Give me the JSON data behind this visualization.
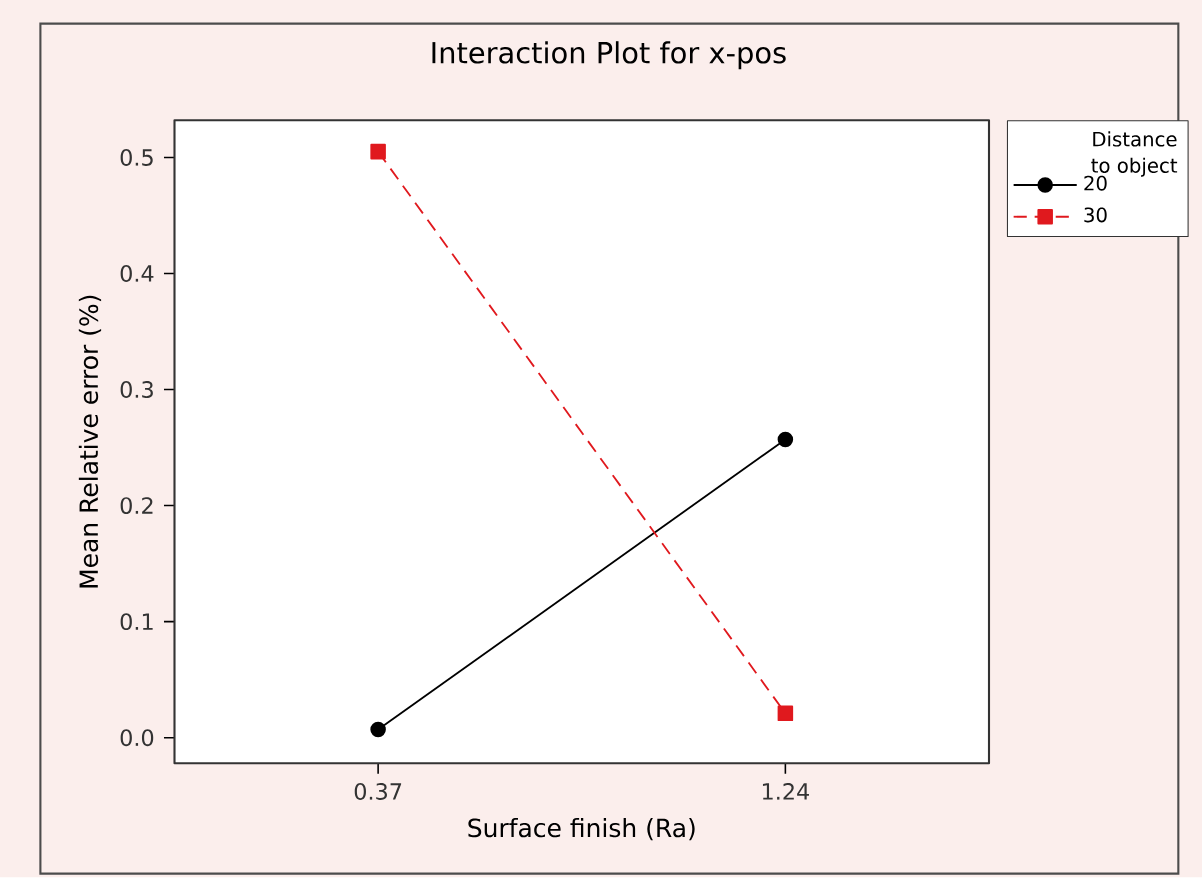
{
  "chart_data": {
    "type": "line",
    "title": "Interaction Plot for x-pos",
    "xlabel": "Surface finish (Ra)",
    "ylabel": "Mean Relative error (%)",
    "legend_title": "Distance to object",
    "legend": "top right",
    "grid": false,
    "categories": [
      "0.37",
      "1.24"
    ],
    "ylim": [
      -0.022,
      0.532
    ],
    "yticks": [
      {
        "value": 0,
        "label": "0.0"
      },
      {
        "value": 0.1,
        "label": "0.1"
      },
      {
        "value": 0.2,
        "label": "0.2"
      },
      {
        "value": 0.3,
        "label": "0.3"
      },
      {
        "value": 0.4,
        "label": "0.4"
      },
      {
        "value": 0.5,
        "label": "0.5"
      }
    ],
    "series": [
      {
        "name": "20",
        "color": "#000000",
        "marker": "circle",
        "line_style": "solid",
        "values": [
          0.007,
          0.257
        ]
      },
      {
        "name": "30",
        "color": "#e0191e",
        "marker": "square",
        "line_style": "dashed",
        "values": [
          0.505,
          0.021
        ]
      }
    ]
  }
}
